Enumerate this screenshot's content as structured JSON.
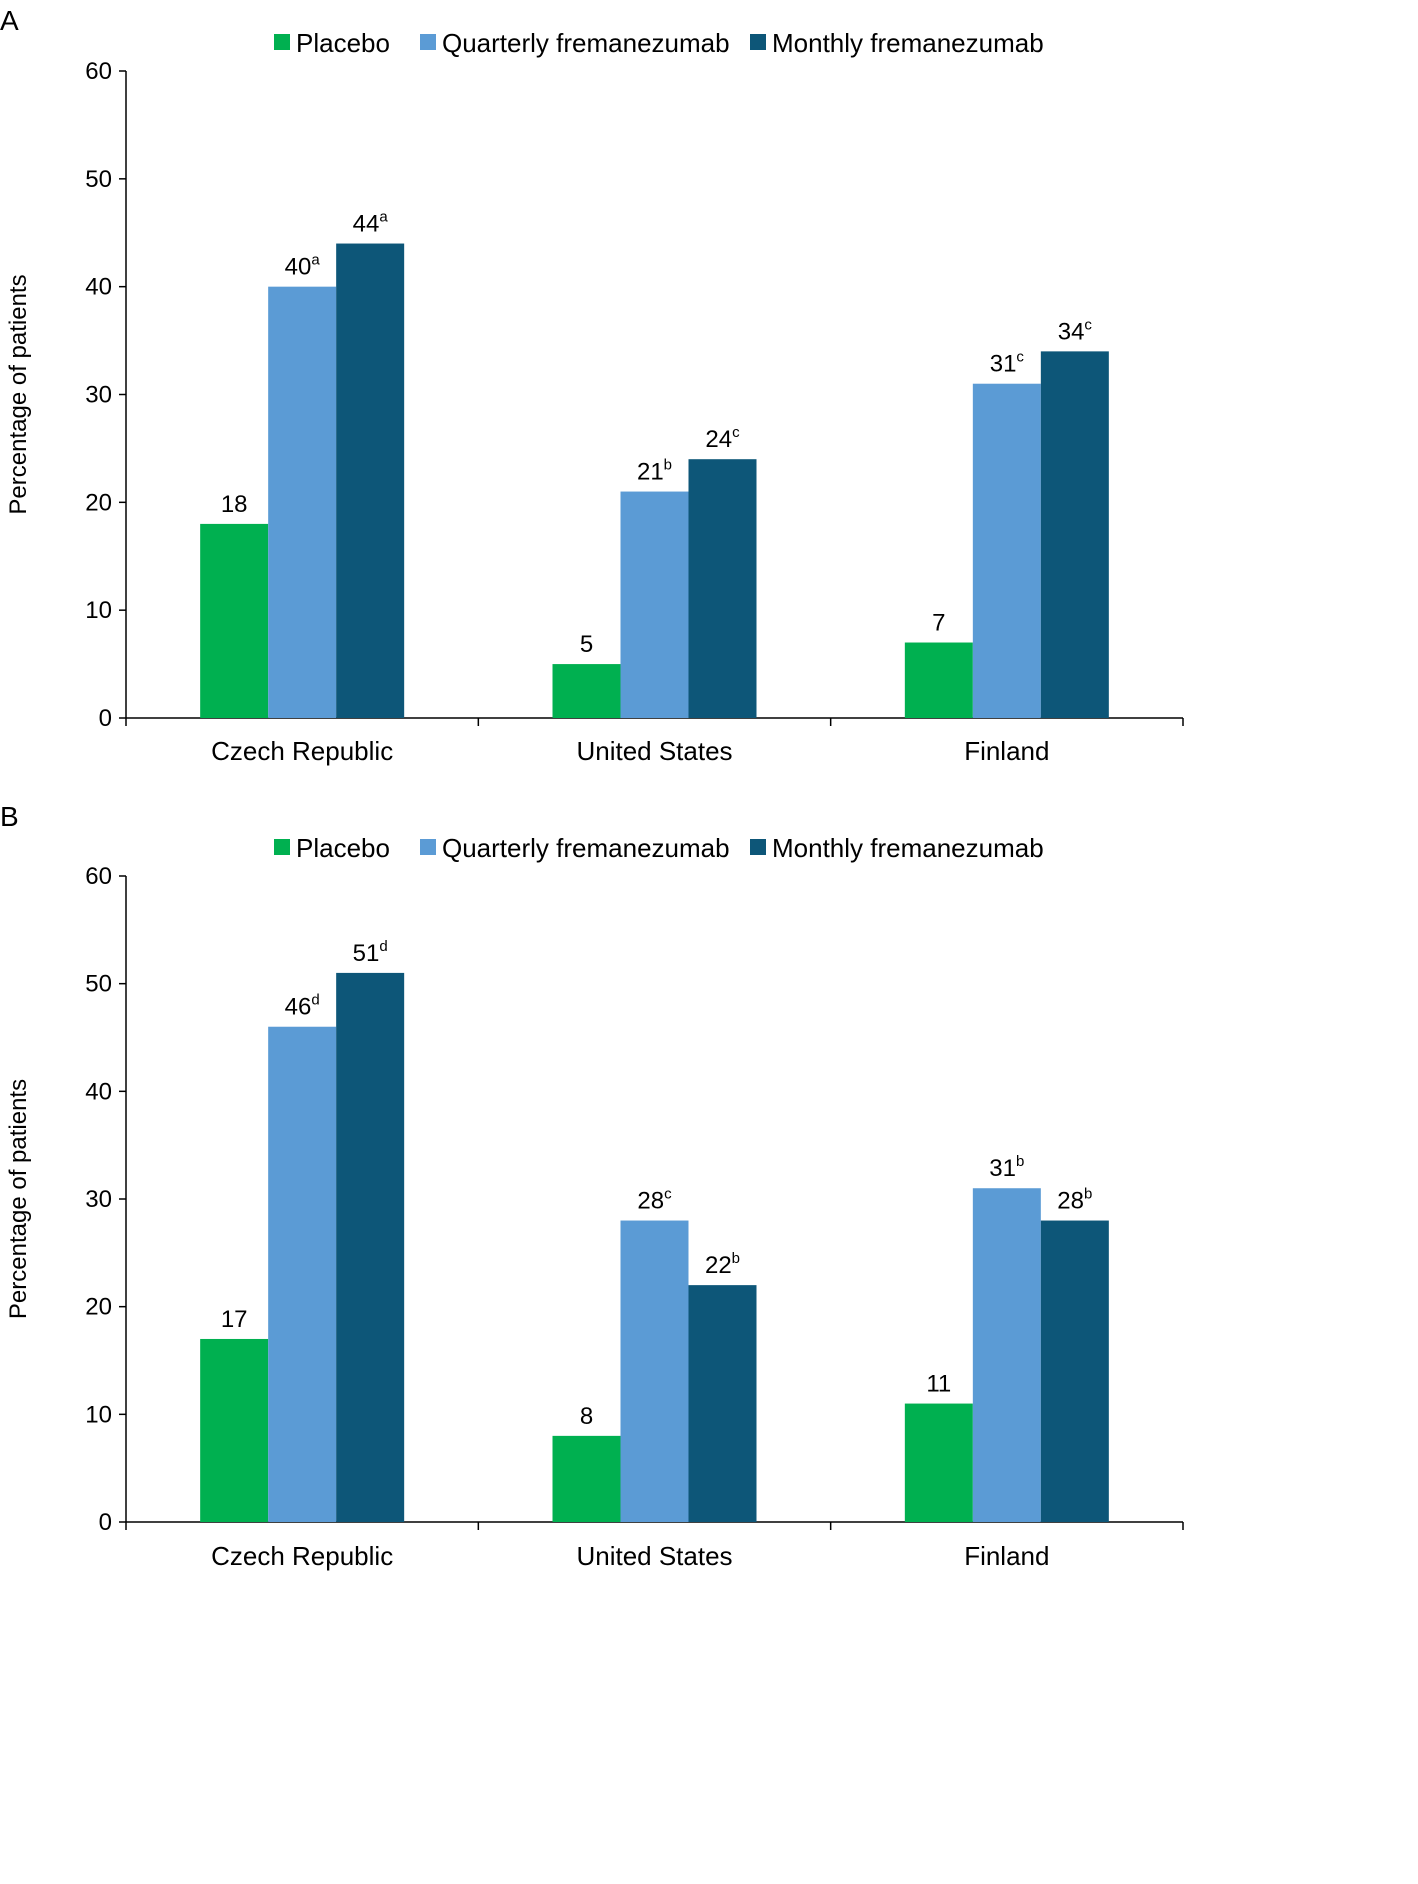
{
  "legend": [
    {
      "name": "Placebo",
      "color": "#00b050"
    },
    {
      "name": "Quarterly fremanezumab",
      "color": "#5b9bd5"
    },
    {
      "name": "Monthly fremanezumab",
      "color": "#0d5678"
    }
  ],
  "chart_data": [
    {
      "type": "bar",
      "panel": "A",
      "title": "",
      "xlabel": "",
      "ylabel": "Percentage of patients",
      "ylim": [
        0,
        60
      ],
      "yticks": [
        0,
        10,
        20,
        30,
        40,
        50,
        60
      ],
      "categories": [
        "Czech Republic",
        "United States",
        "Finland"
      ],
      "legend_position": "top",
      "series": [
        {
          "name": "Placebo",
          "values": [
            18,
            5,
            7
          ],
          "labels": [
            "18",
            "5",
            "7"
          ],
          "superscripts": [
            "",
            "",
            ""
          ]
        },
        {
          "name": "Quarterly fremanezumab",
          "values": [
            40,
            21,
            31
          ],
          "labels": [
            "40",
            "21",
            "31"
          ],
          "superscripts": [
            "a",
            "b",
            "c"
          ]
        },
        {
          "name": "Monthly fremanezumab",
          "values": [
            44,
            24,
            34
          ],
          "labels": [
            "44",
            "24",
            "34"
          ],
          "superscripts": [
            "a",
            "c",
            "c"
          ]
        }
      ]
    },
    {
      "type": "bar",
      "panel": "B",
      "title": "",
      "xlabel": "",
      "ylabel": "Percentage of patients",
      "ylim": [
        0,
        60
      ],
      "yticks": [
        0,
        10,
        20,
        30,
        40,
        50,
        60
      ],
      "categories": [
        "Czech Republic",
        "United States",
        "Finland"
      ],
      "legend_position": "top",
      "series": [
        {
          "name": "Placebo",
          "values": [
            17,
            8,
            11
          ],
          "labels": [
            "17",
            "8",
            "11"
          ],
          "superscripts": [
            "",
            "",
            ""
          ]
        },
        {
          "name": "Quarterly fremanezumab",
          "values": [
            46,
            28,
            31
          ],
          "labels": [
            "46",
            "28",
            "31"
          ],
          "superscripts": [
            "d",
            "c",
            "b"
          ]
        },
        {
          "name": "Monthly fremanezumab",
          "values": [
            51,
            22,
            28
          ],
          "labels": [
            "51",
            "22",
            "28"
          ],
          "superscripts": [
            "d",
            "b",
            "b"
          ]
        }
      ]
    }
  ]
}
